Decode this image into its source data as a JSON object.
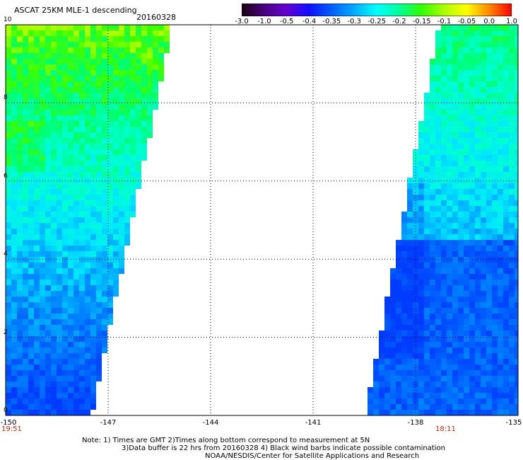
{
  "header": {
    "title": "ASCAT 25KM MLE-1 descending",
    "date": "20160328"
  },
  "colorbar": {
    "labels": [
      "-3.0",
      "-1.0",
      "-0.5",
      "-0.4",
      "-0.35",
      "-0.3",
      "-0.25",
      "-0.2",
      "-0.15",
      "-0.1",
      "-0.05",
      "0.0",
      "1.0"
    ],
    "colors": [
      "#1a0010",
      "#4a0080",
      "#6600d0",
      "#1010ff",
      "#0060ff",
      "#00aaff",
      "#00ffff",
      "#00ff99",
      "#33ff00",
      "#aaff00",
      "#ffff00",
      "#ff8800",
      "#ff0000"
    ]
  },
  "axes": {
    "x_ticks": [
      "-150",
      "-147",
      "-144",
      "-141",
      "-138",
      "-135"
    ],
    "y_ticks": [
      "0",
      "2",
      "4",
      "6",
      "8",
      "10"
    ]
  },
  "timestamps": {
    "left": "19:51",
    "right": "18:11"
  },
  "notes": {
    "line1": "Note: 1) Times are GMT 2)Times along bottom correspond to measurement at 5N",
    "line2": "3)Data buffer is 22 hrs from 20160328 4) Black wind barbs indicate possible contamination",
    "line3": "NOAA/NESDIS/Center for Satellite Applications and Research"
  }
}
